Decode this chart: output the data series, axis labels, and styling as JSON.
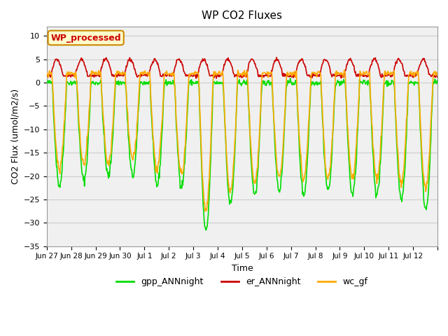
{
  "title": "WP CO2 Fluxes",
  "xlabel": "Time",
  "ylabel": "CO2 Flux (umol/m2/s)",
  "ylim": [
    -35,
    12
  ],
  "yticks": [
    10,
    5,
    0,
    -5,
    -10,
    -15,
    -20,
    -25,
    -30,
    -35
  ],
  "n_days": 16,
  "x_tick_labels": [
    "Jun 27",
    "Jun 28",
    "Jun 29",
    "Jun 30",
    "Jul 1",
    "Jul 2",
    "Jul 3",
    "Jul 4",
    "Jul 5",
    "Jul 6",
    "Jul 7",
    "Jul 8",
    "Jul 9",
    "Jul 10",
    "Jul 11",
    "Jul 12",
    ""
  ],
  "colors": {
    "gpp": "#00dd00",
    "er": "#cc0000",
    "wc": "#ffaa00"
  },
  "legend_label": "WP_processed",
  "legend_bg": "#ffffcc",
  "legend_text_color": "#cc0000",
  "bg_color": "#f0f0f0",
  "plot_bg": "#ffffff",
  "grid_color": "#cccccc",
  "line_width": 1.2,
  "gpp_day_depths": [
    -22,
    -21,
    -20,
    -20,
    -22,
    -22,
    -32,
    -26,
    -24,
    -23,
    -24,
    -23,
    -24,
    -24,
    -25,
    -27
  ],
  "wc_day_depths": [
    -16,
    -15,
    -15,
    -14,
    -16,
    -17,
    -25,
    -21,
    -19,
    -18,
    -18,
    -18,
    -18,
    -18,
    -19,
    -20
  ]
}
